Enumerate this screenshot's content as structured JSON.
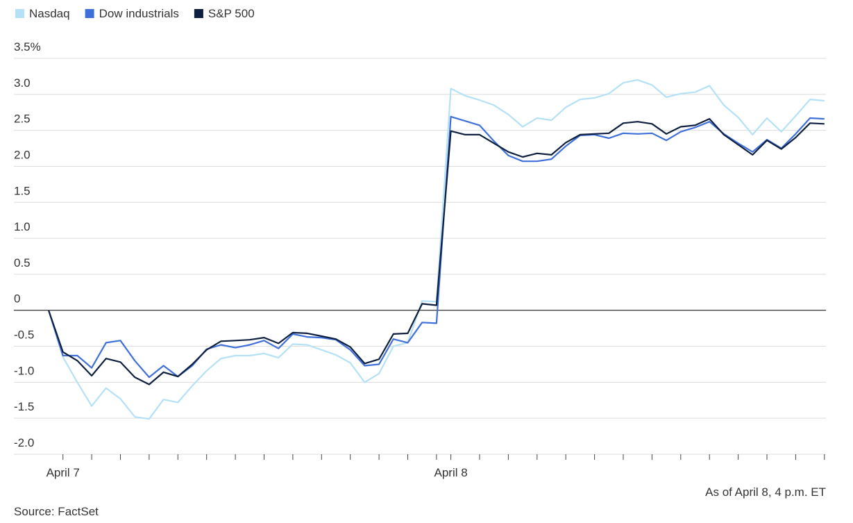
{
  "chart_data": {
    "type": "line",
    "categories": [
      null,
      "April 7",
      null,
      null,
      null,
      null,
      null,
      null,
      null,
      null,
      null,
      null,
      null,
      null,
      null,
      null,
      null,
      null,
      null,
      null,
      null,
      null,
      null,
      null,
      null,
      null,
      null,
      null,
      "April 8",
      null,
      null,
      null,
      null,
      null,
      null,
      null,
      null,
      null,
      null,
      null,
      null,
      null,
      null,
      null,
      null,
      null,
      null,
      null,
      null,
      null,
      null,
      null,
      null,
      null,
      null
    ],
    "series": [
      {
        "name": "Nasdaq",
        "color": "#b5e1f7",
        "values": [
          0,
          -0.65,
          -1.0,
          -1.33,
          -1.08,
          -1.23,
          -1.48,
          -1.51,
          -1.24,
          -1.28,
          -1.05,
          -0.84,
          -0.67,
          -0.63,
          -0.63,
          -0.6,
          -0.66,
          -0.47,
          -0.48,
          -0.55,
          -0.62,
          -0.73,
          -1.0,
          -0.88,
          -0.5,
          -0.45,
          0.13,
          0.12,
          3.08,
          2.98,
          2.92,
          2.85,
          2.72,
          2.55,
          2.67,
          2.64,
          2.82,
          2.93,
          2.95,
          3.01,
          3.16,
          3.2,
          3.13,
          2.96,
          3.01,
          3.03,
          3.12,
          2.85,
          2.68,
          2.44,
          2.67,
          2.48,
          2.7,
          2.93,
          2.91
        ]
      },
      {
        "name": "Dow industrials",
        "color": "#3f6fd8",
        "values": [
          0,
          -0.63,
          -0.63,
          -0.8,
          -0.45,
          -0.42,
          -0.7,
          -0.93,
          -0.77,
          -0.92,
          -0.77,
          -0.54,
          -0.48,
          -0.52,
          -0.48,
          -0.42,
          -0.53,
          -0.33,
          -0.37,
          -0.38,
          -0.41,
          -0.55,
          -0.77,
          -0.75,
          -0.4,
          -0.45,
          -0.17,
          -0.18,
          2.69,
          2.63,
          2.57,
          2.35,
          2.15,
          2.07,
          2.07,
          2.1,
          2.28,
          2.43,
          2.44,
          2.39,
          2.46,
          2.45,
          2.46,
          2.36,
          2.48,
          2.54,
          2.62,
          2.45,
          2.32,
          2.2,
          2.37,
          2.25,
          2.45,
          2.67,
          2.66
        ]
      },
      {
        "name": "S&P 500",
        "color": "#0e1f3f",
        "values": [
          0,
          -0.58,
          -0.7,
          -0.91,
          -0.67,
          -0.72,
          -0.93,
          -1.03,
          -0.86,
          -0.92,
          -0.75,
          -0.55,
          -0.43,
          -0.42,
          -0.41,
          -0.38,
          -0.46,
          -0.31,
          -0.32,
          -0.36,
          -0.4,
          -0.51,
          -0.74,
          -0.68,
          -0.33,
          -0.32,
          0.09,
          0.07,
          2.49,
          2.44,
          2.44,
          2.32,
          2.2,
          2.13,
          2.18,
          2.16,
          2.33,
          2.44,
          2.45,
          2.46,
          2.6,
          2.62,
          2.59,
          2.45,
          2.55,
          2.57,
          2.66,
          2.44,
          2.3,
          2.16,
          2.36,
          2.24,
          2.4,
          2.6,
          2.59
        ]
      }
    ],
    "ylim": [
      -2.0,
      3.5
    ],
    "yticks": [
      {
        "value": 3.5,
        "label": "3.5%"
      },
      {
        "value": 3,
        "label": "3.0"
      },
      2.5,
      {
        "value": 2,
        "label": "2.0"
      },
      1.5,
      {
        "value": 1,
        "label": "1.0"
      },
      0.5,
      0,
      -0.5,
      {
        "value": -1,
        "label": "-1.0"
      },
      -1.5,
      {
        "value": -2,
        "label": "-2.0"
      }
    ],
    "grid": true,
    "legend": "top-left",
    "annotations": [
      "As of April 8, 4 p.m. ET",
      "Source: FactSet"
    ]
  }
}
